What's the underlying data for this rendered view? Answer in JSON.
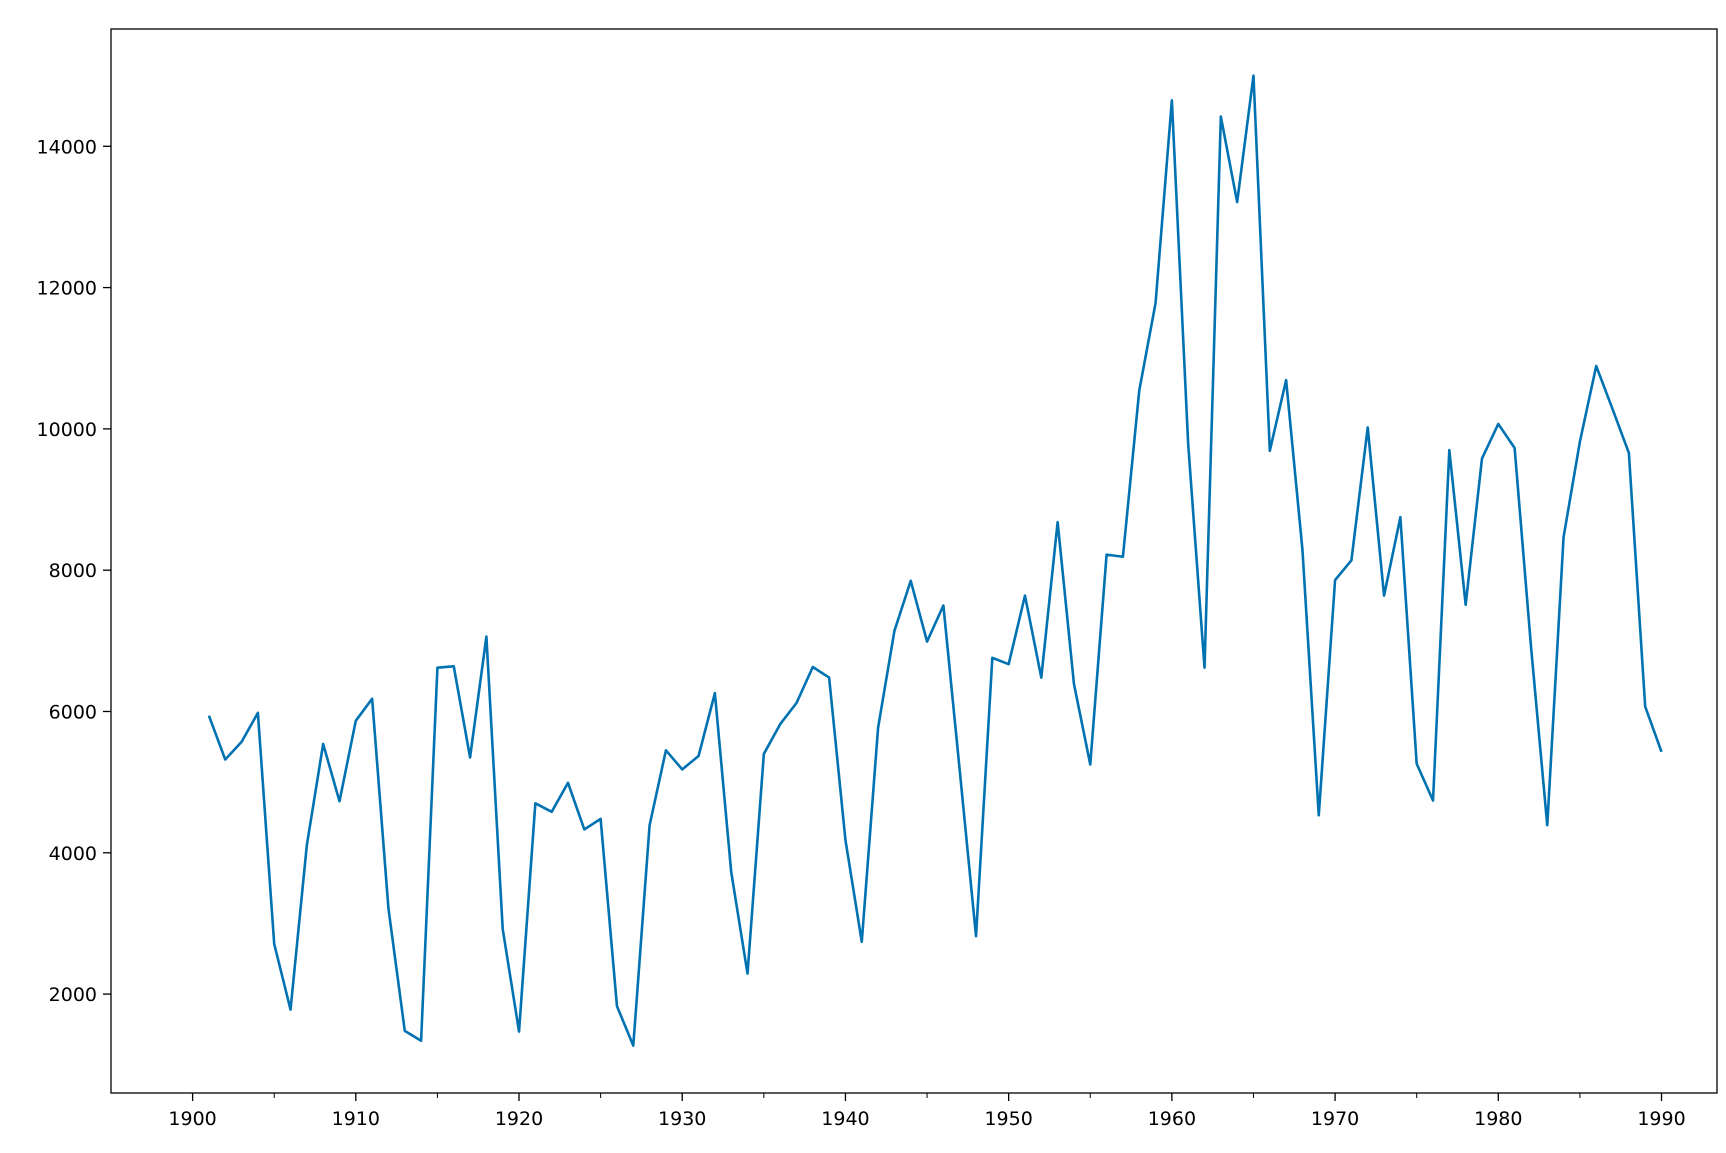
{
  "chart_data": {
    "type": "line",
    "title": "",
    "xlabel": "",
    "ylabel": "",
    "xlim": [
      1895,
      1993.4
    ],
    "ylim": [
      600,
      15660
    ],
    "grid": false,
    "line_color": "#0072b2",
    "x_ticks": [
      {
        "value": 1900,
        "label": "1900"
      },
      {
        "value": 1910,
        "label": "1910"
      },
      {
        "value": 1920,
        "label": "1920"
      },
      {
        "value": 1930,
        "label": "1930"
      },
      {
        "value": 1940,
        "label": "1940"
      },
      {
        "value": 1950,
        "label": "1950"
      },
      {
        "value": 1960,
        "label": "1960"
      },
      {
        "value": 1970,
        "label": "1970"
      },
      {
        "value": 1980,
        "label": "1980"
      },
      {
        "value": 1990,
        "label": "1990"
      }
    ],
    "y_ticks": [
      {
        "value": 2000,
        "label": "2000"
      },
      {
        "value": 4000,
        "label": "4000"
      },
      {
        "value": 6000,
        "label": "6000"
      },
      {
        "value": 8000,
        "label": "8000"
      },
      {
        "value": 10000,
        "label": "10000"
      },
      {
        "value": 12000,
        "label": "12000"
      },
      {
        "value": 14000,
        "label": "14000"
      }
    ],
    "x": [
      1901,
      1902,
      1903,
      1904,
      1905,
      1906,
      1907,
      1908,
      1909,
      1910,
      1911,
      1912,
      1913,
      1914,
      1915,
      1916,
      1917,
      1918,
      1919,
      1920,
      1921,
      1922,
      1923,
      1924,
      1925,
      1926,
      1927,
      1928,
      1929,
      1930,
      1931,
      1932,
      1933,
      1934,
      1935,
      1936,
      1937,
      1938,
      1939,
      1940,
      1941,
      1942,
      1943,
      1944,
      1945,
      1946,
      1947,
      1948,
      1949,
      1950,
      1951,
      1952,
      1953,
      1954,
      1955,
      1956,
      1957,
      1958,
      1959,
      1960,
      1961,
      1962,
      1963,
      1964,
      1965,
      1966,
      1967,
      1968,
      1969,
      1970,
      1971,
      1972,
      1973,
      1974,
      1975,
      1976,
      1977,
      1978,
      1979,
      1980,
      1981,
      1982,
      1983,
      1984,
      1985,
      1986,
      1987,
      1988,
      1989,
      1990
    ],
    "series": [
      {
        "values": [
          5940,
          5320,
          5570,
          5980,
          2710,
          1780,
          4110,
          5540,
          4730,
          5870,
          6180,
          3210,
          1480,
          1340,
          6620,
          6640,
          5350,
          7060,
          2920,
          1470,
          4700,
          4580,
          4990,
          4330,
          4480,
          1830,
          1270,
          4390,
          5450,
          5180,
          5370,
          6260,
          3730,
          2290,
          5400,
          5820,
          6120,
          6630,
          6480,
          4180,
          2740,
          5770,
          7140,
          7850,
          6990,
          7500,
          5170,
          2820,
          6760,
          6670,
          7640,
          6480,
          8680,
          6390,
          5250,
          8220,
          8190,
          10540,
          11780,
          14650,
          9780,
          6620,
          14420,
          13210,
          15000,
          9690,
          10690,
          8290,
          4530,
          7860,
          8140,
          10020,
          7640,
          8750,
          5260,
          4740,
          9700,
          7510,
          9580,
          10070,
          9730,
          6930,
          4390,
          8470,
          9820,
          10890,
          10280,
          9660,
          6070,
          5430
        ]
      }
    ]
  }
}
